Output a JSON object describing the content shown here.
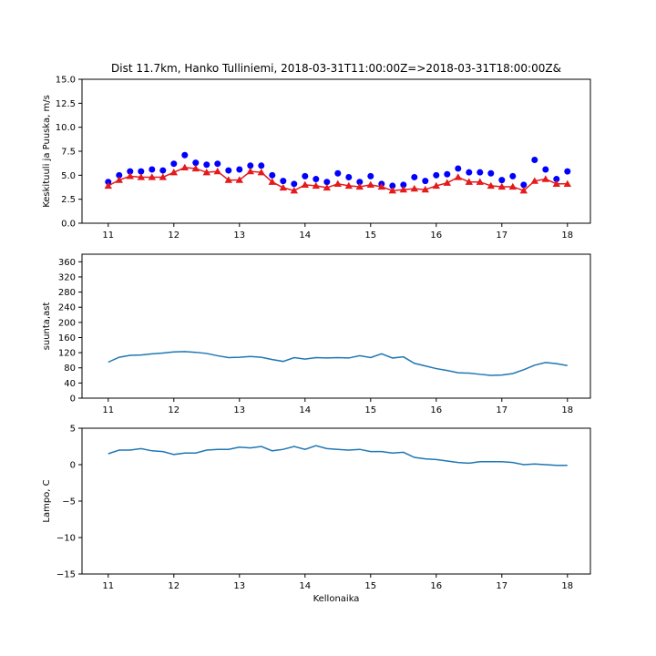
{
  "chart_data": [
    {
      "type": "scatter+line",
      "title": "Dist 11.7km, Hanko Tulliniemi, 2018-03-31T11:00:00Z=>2018-03-31T18:00:00Z&",
      "ylabel": "Keskituuli ja Puuska, m/s",
      "xlabel": "",
      "xlim": [
        10.6,
        18.35
      ],
      "ylim": [
        0,
        15
      ],
      "xticks": [
        11,
        12,
        13,
        14,
        15,
        16,
        17,
        18
      ],
      "yticks": [
        0,
        2.5,
        5,
        7.5,
        10,
        12.5,
        15
      ],
      "ytick_labels": [
        "0.0",
        "2.5",
        "5.0",
        "7.5",
        "10.0",
        "12.5",
        "15.0"
      ],
      "x": [
        11,
        11.1667,
        11.3333,
        11.5,
        11.6667,
        11.8333,
        12,
        12.1667,
        12.3333,
        12.5,
        12.6667,
        12.8333,
        13,
        13.1667,
        13.3333,
        13.5,
        13.6667,
        13.8333,
        14,
        14.1667,
        14.3333,
        14.5,
        14.6667,
        14.8333,
        15,
        15.1667,
        15.3333,
        15.5,
        15.6667,
        15.8333,
        16,
        16.1667,
        16.3333,
        16.5,
        16.6667,
        16.8333,
        17,
        17.1667,
        17.3333,
        17.5,
        17.6667,
        17.8333,
        18
      ],
      "series": [
        {
          "marker": "circle",
          "line": false,
          "color": "#0000ff",
          "values": [
            4.3,
            5.0,
            5.4,
            5.4,
            5.6,
            5.5,
            6.2,
            7.1,
            6.3,
            6.1,
            6.2,
            5.5,
            5.6,
            6.0,
            6.0,
            5.0,
            4.4,
            4.1,
            4.9,
            4.6,
            4.3,
            5.2,
            4.8,
            4.3,
            4.9,
            4.1,
            3.9,
            4.0,
            4.8,
            4.4,
            5.0,
            5.1,
            5.7,
            5.3,
            5.3,
            5.2,
            4.5,
            4.9,
            4.0,
            6.6,
            5.6,
            4.6,
            5.4
          ]
        },
        {
          "marker": "triangle",
          "line": true,
          "color": "#e41a1c",
          "values": [
            3.9,
            4.5,
            4.9,
            4.8,
            4.8,
            4.8,
            5.3,
            5.8,
            5.7,
            5.3,
            5.4,
            4.5,
            4.5,
            5.4,
            5.3,
            4.3,
            3.7,
            3.4,
            4.0,
            3.9,
            3.7,
            4.1,
            3.9,
            3.8,
            4.0,
            3.8,
            3.4,
            3.5,
            3.6,
            3.5,
            3.9,
            4.2,
            4.8,
            4.3,
            4.3,
            3.9,
            3.8,
            3.8,
            3.4,
            4.4,
            4.6,
            4.1,
            4.1
          ]
        }
      ]
    },
    {
      "type": "line",
      "title": "",
      "ylabel": "suunta,ast",
      "xlabel": "",
      "xlim": [
        10.6,
        18.35
      ],
      "ylim": [
        0,
        380
      ],
      "xticks": [
        11,
        12,
        13,
        14,
        15,
        16,
        17,
        18
      ],
      "yticks": [
        0,
        40,
        80,
        120,
        160,
        200,
        240,
        280,
        320,
        360
      ],
      "ytick_labels": [
        "0",
        "40",
        "80",
        "120",
        "160",
        "200",
        "240",
        "280",
        "320",
        "360"
      ],
      "x": [
        11,
        11.1667,
        11.3333,
        11.5,
        11.6667,
        11.8333,
        12,
        12.1667,
        12.3333,
        12.5,
        12.6667,
        12.8333,
        13,
        13.1667,
        13.3333,
        13.5,
        13.6667,
        13.8333,
        14,
        14.1667,
        14.3333,
        14.5,
        14.6667,
        14.8333,
        15,
        15.1667,
        15.3333,
        15.5,
        15.6667,
        15.8333,
        16,
        16.1667,
        16.3333,
        16.5,
        16.6667,
        16.8333,
        17,
        17.1667,
        17.3333,
        17.5,
        17.6667,
        17.8333,
        18
      ],
      "series": [
        {
          "color": "#1f77b4",
          "values": [
            95,
            108,
            113,
            114,
            117,
            119,
            122,
            123,
            121,
            118,
            112,
            107,
            108,
            110,
            108,
            102,
            97,
            107,
            103,
            107,
            106,
            107,
            106,
            112,
            107,
            117,
            106,
            109,
            92,
            85,
            78,
            73,
            67,
            66,
            63,
            60,
            61,
            65,
            75,
            87,
            94,
            91,
            86
          ]
        }
      ]
    },
    {
      "type": "line",
      "title": "",
      "ylabel": "Lampo, C",
      "xlabel": "Kellonaika",
      "xlim": [
        10.6,
        18.35
      ],
      "ylim": [
        -15,
        5
      ],
      "xticks": [
        11,
        12,
        13,
        14,
        15,
        16,
        17,
        18
      ],
      "yticks": [
        -15,
        -10,
        -5,
        0,
        5
      ],
      "ytick_labels": [
        "−15",
        "−10",
        "−5",
        "0",
        "5"
      ],
      "x": [
        11,
        11.1667,
        11.3333,
        11.5,
        11.6667,
        11.8333,
        12,
        12.1667,
        12.3333,
        12.5,
        12.6667,
        12.8333,
        13,
        13.1667,
        13.3333,
        13.5,
        13.6667,
        13.8333,
        14,
        14.1667,
        14.3333,
        14.5,
        14.6667,
        14.8333,
        15,
        15.1667,
        15.3333,
        15.5,
        15.6667,
        15.8333,
        16,
        16.1667,
        16.3333,
        16.5,
        16.6667,
        16.8333,
        17,
        17.1667,
        17.3333,
        17.5,
        17.6667,
        17.8333,
        18
      ],
      "series": [
        {
          "color": "#1f77b4",
          "values": [
            1.5,
            2.0,
            2.0,
            2.2,
            1.9,
            1.8,
            1.4,
            1.6,
            1.6,
            2.0,
            2.1,
            2.1,
            2.4,
            2.3,
            2.5,
            1.9,
            2.1,
            2.5,
            2.1,
            2.6,
            2.2,
            2.1,
            2.0,
            2.1,
            1.8,
            1.8,
            1.6,
            1.7,
            1.0,
            0.8,
            0.7,
            0.5,
            0.3,
            0.2,
            0.4,
            0.4,
            0.4,
            0.3,
            0.0,
            0.1,
            0.0,
            -0.1,
            -0.1
          ]
        }
      ]
    }
  ]
}
